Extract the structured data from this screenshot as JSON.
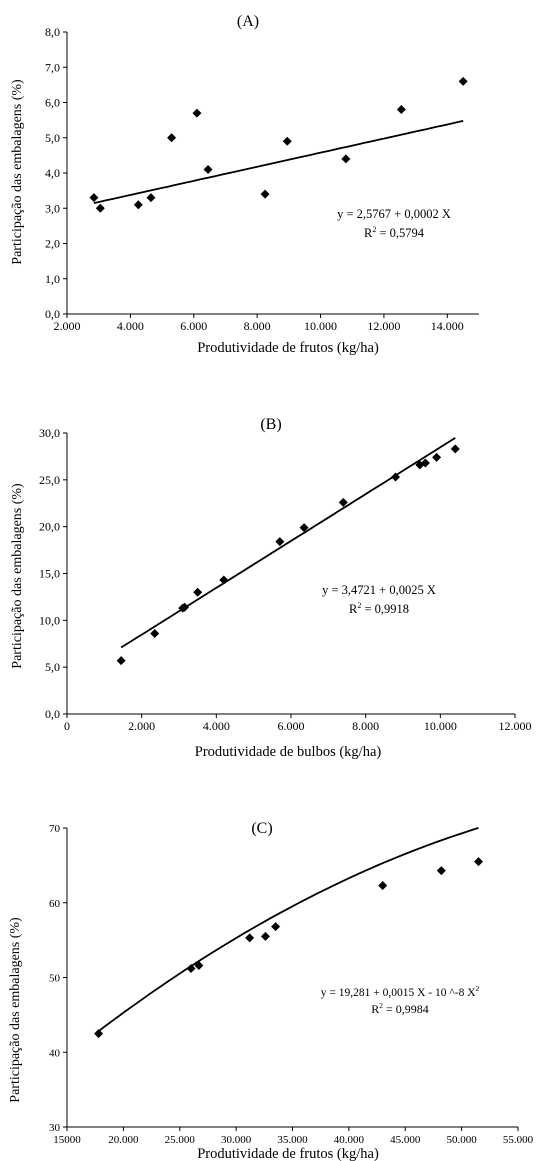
{
  "chart_data": [
    {
      "type": "scatter",
      "title": "(A)",
      "xlabel": "Produtividade de frutos (kg/ha)",
      "ylabel": "Participação das embalagens (%)",
      "xlim": [
        2000,
        15000
      ],
      "ylim": [
        0,
        8
      ],
      "xticks": [
        2000,
        4000,
        6000,
        8000,
        10000,
        12000,
        14000
      ],
      "xtick_labels": [
        "2.000",
        "4.000",
        "6.000",
        "8.000",
        "10.000",
        "12.000",
        "14.000"
      ],
      "yticks": [
        0,
        1,
        2,
        3,
        4,
        5,
        6,
        7,
        8
      ],
      "ytick_labels": [
        "0,0",
        "1,0",
        "2,0",
        "3,0",
        "4,0",
        "5,0",
        "6,0",
        "7,0",
        "8,0"
      ],
      "grid": false,
      "points": [
        {
          "x": 2850,
          "y": 3.3
        },
        {
          "x": 3050,
          "y": 3.0
        },
        {
          "x": 4250,
          "y": 3.1
        },
        {
          "x": 4650,
          "y": 3.3
        },
        {
          "x": 5300,
          "y": 5.0
        },
        {
          "x": 6100,
          "y": 5.7
        },
        {
          "x": 6450,
          "y": 4.1
        },
        {
          "x": 8250,
          "y": 3.4
        },
        {
          "x": 8950,
          "y": 4.9
        },
        {
          "x": 10800,
          "y": 4.4
        },
        {
          "x": 12550,
          "y": 5.8
        },
        {
          "x": 14500,
          "y": 6.6
        }
      ],
      "trendline": {
        "kind": "linear",
        "a": 2.5767,
        "b": 0.0002,
        "x_range": [
          2850,
          14500
        ]
      },
      "equation": "y =  2,5767 + 0,0002 X",
      "r2_label": "R",
      "r2_sup": "2",
      "r2_value": " = 0,5794"
    },
    {
      "type": "scatter",
      "title": "(B)",
      "xlabel": "Produtividade de bulbos (kg/ha)",
      "ylabel": "Participação das embalagens (%)",
      "xlim": [
        0,
        12000
      ],
      "ylim": [
        0,
        30
      ],
      "xticks": [
        0,
        2000,
        4000,
        6000,
        8000,
        10000,
        12000
      ],
      "xtick_labels": [
        "0",
        "2.000",
        "4.000",
        "6.000",
        "8.000",
        "10.000",
        "12.000"
      ],
      "yticks": [
        0,
        5,
        10,
        15,
        20,
        25,
        30
      ],
      "ytick_labels": [
        "0,0",
        "5,0",
        "10,0",
        "15,0",
        "20,0",
        "25,0",
        "30,0"
      ],
      "grid": false,
      "points": [
        {
          "x": 1450,
          "y": 5.7
        },
        {
          "x": 2350,
          "y": 8.6
        },
        {
          "x": 3100,
          "y": 11.3
        },
        {
          "x": 3150,
          "y": 11.4
        },
        {
          "x": 3500,
          "y": 13.0
        },
        {
          "x": 4200,
          "y": 14.3
        },
        {
          "x": 5700,
          "y": 18.4
        },
        {
          "x": 6350,
          "y": 19.9
        },
        {
          "x": 7400,
          "y": 22.6
        },
        {
          "x": 8800,
          "y": 25.3
        },
        {
          "x": 9450,
          "y": 26.6
        },
        {
          "x": 9600,
          "y": 26.8
        },
        {
          "x": 9900,
          "y": 27.4
        },
        {
          "x": 10400,
          "y": 28.3
        }
      ],
      "trendline": {
        "kind": "linear",
        "a": 3.4721,
        "b": 0.0025,
        "x_range": [
          1450,
          10400
        ]
      },
      "equation": "y = 3,4721 + 0,0025 X",
      "r2_label": "R",
      "r2_sup": "2",
      "r2_value": " = 0,9918"
    },
    {
      "type": "scatter",
      "title": "(C)",
      "xlabel": "Produtividade de frutos (kg/ha)",
      "ylabel": "Participação das embalagens (%)",
      "xlim": [
        15000,
        55000
      ],
      "ylim": [
        30,
        70
      ],
      "xticks": [
        15000,
        20000,
        25000,
        30000,
        35000,
        40000,
        45000,
        50000,
        55000
      ],
      "xtick_labels": [
        "15000",
        "20.000",
        "25.000",
        "30.000",
        "35.000",
        "40.000",
        "45.000",
        "50.000",
        "55.000"
      ],
      "yticks": [
        30,
        40,
        50,
        60,
        70
      ],
      "ytick_labels": [
        "30",
        "40",
        "50",
        "60",
        "70"
      ],
      "grid": false,
      "points": [
        {
          "x": 17800,
          "y": 42.5
        },
        {
          "x": 26000,
          "y": 51.2
        },
        {
          "x": 26700,
          "y": 51.6
        },
        {
          "x": 31200,
          "y": 55.3
        },
        {
          "x": 32600,
          "y": 55.5
        },
        {
          "x": 33500,
          "y": 56.8
        },
        {
          "x": 43000,
          "y": 62.3
        },
        {
          "x": 48200,
          "y": 64.3
        },
        {
          "x": 51500,
          "y": 65.5
        }
      ],
      "trendline": {
        "kind": "quadratic",
        "a": 19.281,
        "b": 0.0015,
        "c": -1e-08,
        "x_range": [
          17800,
          51500
        ]
      },
      "equation": "y = 19,281 + 0,0015 X - 10   ^-8 X",
      "equation_sup": "2",
      "r2_label": "R",
      "r2_sup": "2",
      "r2_value": " = 0,9984"
    }
  ]
}
